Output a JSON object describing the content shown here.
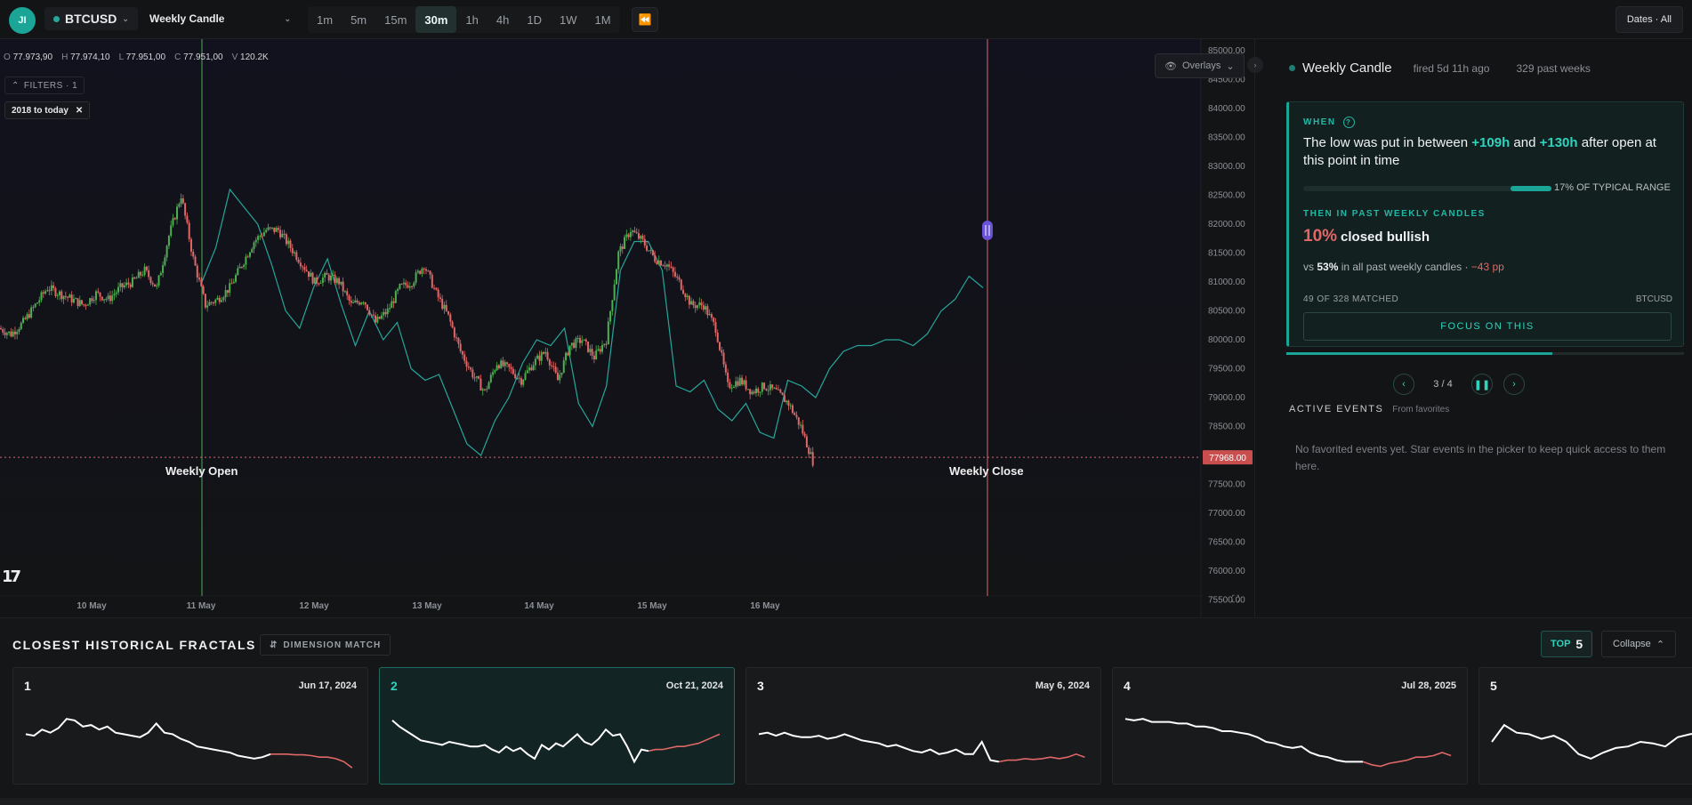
{
  "topbar": {
    "avatar": "JI",
    "symbol": "BTCUSD",
    "event": "Weekly Candle",
    "timeframes": [
      "1m",
      "5m",
      "15m",
      "30m",
      "1h",
      "4h",
      "1D",
      "1W",
      "1M"
    ],
    "active_timeframe": "30m",
    "rewind_icon": "rewind-icon",
    "dates_label": "Dates · All"
  },
  "chart": {
    "ohlc": {
      "o_label": "O",
      "o": "77.973,90",
      "h_label": "H",
      "h": "77.974,10",
      "l_label": "L",
      "l": "77.951,00",
      "c_label": "C",
      "c": "77.951,00",
      "v_label": "V",
      "v": "120.2K"
    },
    "filters_label": "FILTERS · 1",
    "range_chip": "2018 to today",
    "overlays_label": "Overlays",
    "markers": {
      "open": "Weekly Open",
      "close": "Weekly Close"
    },
    "current_price_label": "77968.00",
    "colors": {
      "up": "#4caf50",
      "down": "#e06767",
      "overlay": "#26a69a",
      "open_line": "#4caf50",
      "close_line": "#d46a6a"
    }
  },
  "chart_data": {
    "type": "line",
    "title": "",
    "xlabel": "",
    "ylabel": "",
    "x_ticks": [
      "10 May",
      "11 May",
      "12 May",
      "13 May",
      "14 May",
      "15 May",
      "16 May"
    ],
    "ylim": [
      75200,
      85200
    ],
    "y_ticks": [
      75500,
      76000,
      76500,
      77000,
      77500,
      78000,
      78500,
      79000,
      79500,
      80000,
      80500,
      81000,
      81500,
      82000,
      82500,
      83000,
      83500,
      84000,
      84500,
      85000
    ],
    "current_price": 77968,
    "series": [
      {
        "values": [
          80200,
          80100,
          80300,
          80600,
          80900,
          80800,
          80700,
          80600,
          80800,
          80700,
          80900,
          81000,
          81200,
          80900,
          81800,
          82500,
          81400,
          80600,
          80700,
          80900,
          81300,
          81700,
          81900,
          81900,
          81600,
          81300,
          81000,
          81100,
          81000,
          80600,
          80700,
          80300,
          80500,
          80900,
          81000,
          81300,
          80800,
          80400,
          79800,
          79400,
          79100,
          79600,
          79500,
          79300,
          79600,
          79800,
          79300,
          79900,
          80000,
          79700,
          80000,
          81500,
          81900,
          81700,
          81400,
          81300,
          81000,
          80600,
          80600,
          80200,
          79200,
          79300,
          79100,
          79200,
          79100,
          78900,
          78500,
          77900
        ]
      },
      {
        "values": [
          81000,
          81600,
          82600,
          82300,
          82000,
          81300,
          80500,
          80200,
          80900,
          81400,
          80600,
          79900,
          80500,
          80000,
          80300,
          79500,
          79300,
          79400,
          78800,
          78200,
          78000,
          78600,
          79000,
          79600,
          80000,
          79900,
          80200,
          78900,
          78500,
          79200,
          81200,
          81700,
          81700,
          81200,
          79200,
          79100,
          79300,
          78800,
          78600,
          78900,
          78400,
          78300,
          79300,
          79200,
          79000,
          79500,
          79800,
          79900,
          79900,
          80000,
          80000,
          79900,
          80100,
          80500,
          80700,
          81100,
          80900
        ]
      }
    ],
    "legend": "none",
    "grid": false
  },
  "panel": {
    "title": "Weekly Candle",
    "fired": "fired 5d 11h ago",
    "past_weeks": "329 past weeks",
    "when_label": "WHEN",
    "when_pre": "The low was put in between ",
    "when_h1": "+109h",
    "when_and": " and ",
    "when_h2": "+130h",
    "when_post": " after open at this point in time",
    "range_pct": 17,
    "range_text": "17% OF TYPICAL RANGE",
    "then_label": "THEN IN PAST WEEKLY CANDLES",
    "bullish_pct": "10%",
    "bullish_word": "closed bullish",
    "vs_pre": "vs ",
    "vs_pct": "53%",
    "vs_mid": " in all past weekly candles · ",
    "vs_delta": "−43 pp",
    "matched": "49 OF 328 MATCHED",
    "matched_symbol": "BTCUSD",
    "focus_label": "FOCUS ON THIS",
    "progress": 0.67,
    "pager": "3 / 4",
    "active_events_label": "ACTIVE EVENTS",
    "active_events_sub": "From favorites",
    "no_favorites": "No favorited events yet. Star events in the picker to keep quick access to them here."
  },
  "fractals": {
    "title": "CLOSEST HISTORICAL FRACTALS",
    "dimension_label": "DIMENSION MATCH",
    "top_label": "TOP",
    "top_value": "5",
    "collapse_label": "Collapse",
    "cards": [
      {
        "rank": "1",
        "date": "Jun 17, 2024",
        "past": [
          60,
          58,
          66,
          62,
          68,
          80,
          78,
          70,
          72,
          66,
          70,
          62,
          60,
          58,
          56,
          62,
          74,
          62,
          60,
          54,
          50,
          44,
          42,
          40,
          38,
          36,
          32,
          30,
          28,
          30,
          34
        ],
        "future": [
          34,
          34,
          34,
          33,
          33,
          32,
          30,
          30,
          28,
          24,
          16
        ]
      },
      {
        "rank": "2",
        "date": "Oct 21, 2024",
        "past": [
          78,
          70,
          64,
          58,
          52,
          50,
          48,
          46,
          50,
          48,
          46,
          44,
          44,
          46,
          40,
          36,
          44,
          38,
          42,
          34,
          28,
          46,
          40,
          48,
          44,
          52,
          60,
          50,
          46,
          54,
          66,
          58,
          60,
          44,
          24,
          40,
          38
        ],
        "future": [
          38,
          40,
          40,
          42,
          44,
          44,
          46,
          48,
          52,
          56,
          60
        ]
      },
      {
        "rank": "3",
        "date": "May 6, 2024",
        "past": [
          60,
          62,
          58,
          62,
          58,
          56,
          56,
          58,
          54,
          56,
          60,
          56,
          52,
          50,
          48,
          44,
          46,
          42,
          38,
          36,
          40,
          34,
          36,
          40,
          34,
          34,
          50,
          26,
          24
        ],
        "future": [
          24,
          26,
          26,
          28,
          27,
          28,
          30,
          28,
          30,
          34,
          30
        ]
      },
      {
        "rank": "4",
        "date": "Jul 28, 2025",
        "past": [
          80,
          78,
          80,
          76,
          76,
          76,
          74,
          74,
          70,
          70,
          68,
          64,
          64,
          62,
          60,
          56,
          50,
          48,
          44,
          42,
          44,
          36,
          32,
          30,
          26,
          24,
          24,
          24
        ],
        "future": [
          24,
          20,
          18,
          22,
          24,
          26,
          30,
          30,
          32,
          36,
          32
        ]
      },
      {
        "rank": "5",
        "date": "",
        "past": [
          50,
          72,
          62,
          60,
          54,
          58,
          50,
          34,
          28,
          36,
          42,
          44,
          50,
          48,
          44,
          56,
          60,
          62,
          58,
          64,
          66,
          68,
          74,
          70,
          66
        ],
        "future": [
          66,
          60,
          54
        ]
      }
    ],
    "selected_index": 1
  }
}
